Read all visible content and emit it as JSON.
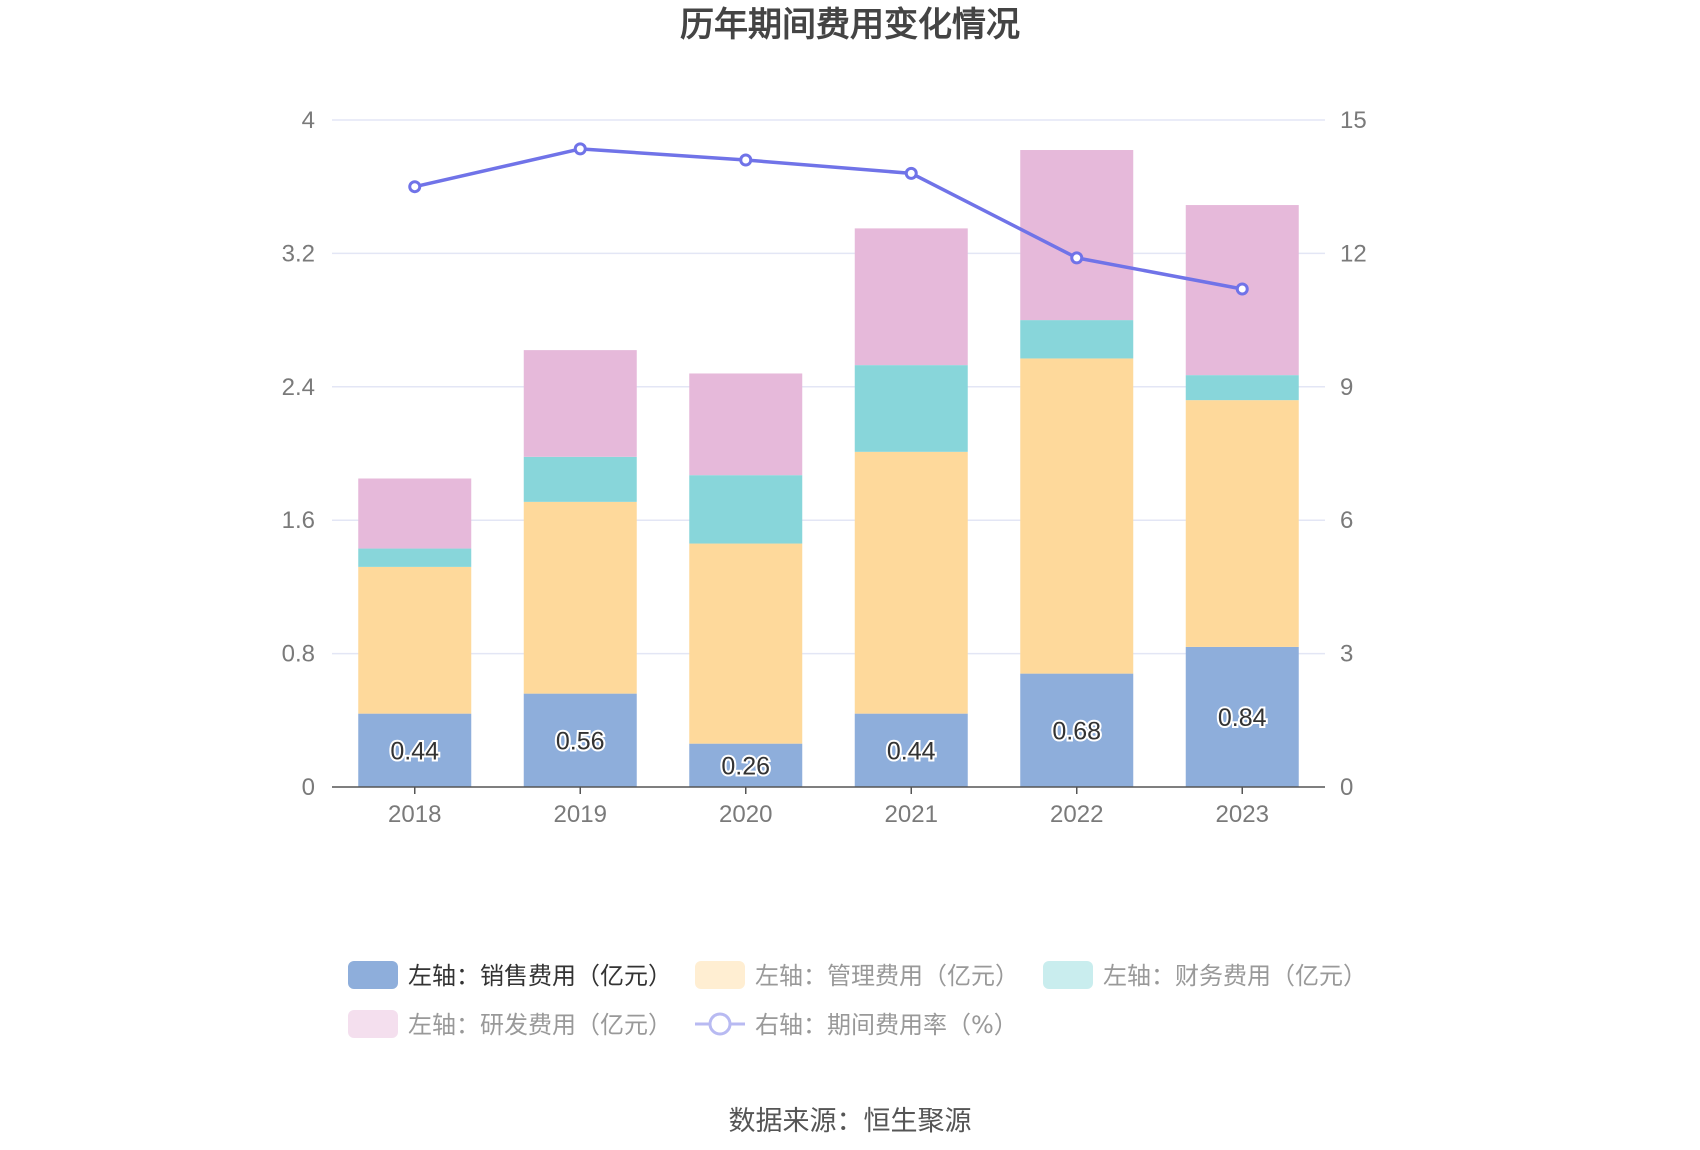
{
  "chart_data": {
    "type": "bar",
    "title": "历年期间费用变化情况",
    "source": "数据来源：恒生聚源",
    "categories": [
      "2018",
      "2019",
      "2020",
      "2021",
      "2022",
      "2023"
    ],
    "y_left": {
      "ylim": [
        0,
        4
      ],
      "ticks": [
        "0",
        "0.8",
        "1.6",
        "2.4",
        "3.2",
        "4"
      ]
    },
    "y_right": {
      "ylim": [
        0,
        15
      ],
      "ticks": [
        "0",
        "3",
        "6",
        "9",
        "12",
        "15"
      ]
    },
    "grid": true,
    "legend_position": "bottom",
    "series": [
      {
        "name": "左轴：销售费用（亿元）",
        "type": "bar",
        "axis": "left",
        "color": "#8eaedb",
        "values": [
          0.44,
          0.56,
          0.26,
          0.44,
          0.68,
          0.84
        ],
        "labels": [
          "0.44",
          "0.56",
          "0.26",
          "0.44",
          "0.68",
          "0.84"
        ]
      },
      {
        "name": "左轴：管理费用（亿元）",
        "type": "bar",
        "axis": "left",
        "color": "#fed99b",
        "values": [
          0.88,
          1.15,
          1.2,
          1.57,
          1.89,
          1.48
        ]
      },
      {
        "name": "左轴：财务费用（亿元）",
        "type": "bar",
        "axis": "left",
        "color": "#88d6da",
        "values": [
          0.11,
          0.27,
          0.41,
          0.52,
          0.23,
          0.15
        ]
      },
      {
        "name": "左轴：研发费用（亿元）",
        "type": "bar",
        "axis": "left",
        "color": "#e6b9da",
        "values": [
          0.42,
          0.64,
          0.61,
          0.82,
          1.02,
          1.02
        ]
      },
      {
        "name": "右轴：期间费用率（%）",
        "type": "line",
        "axis": "right",
        "color": "#7073e8",
        "values": [
          13.5,
          14.35,
          14.1,
          13.8,
          11.9,
          11.2
        ]
      }
    ]
  },
  "colors": {
    "legend_text_active": "#333333",
    "legend_text_muted": "#999999",
    "grid": "#e3e6f5",
    "axis": "#555555"
  }
}
